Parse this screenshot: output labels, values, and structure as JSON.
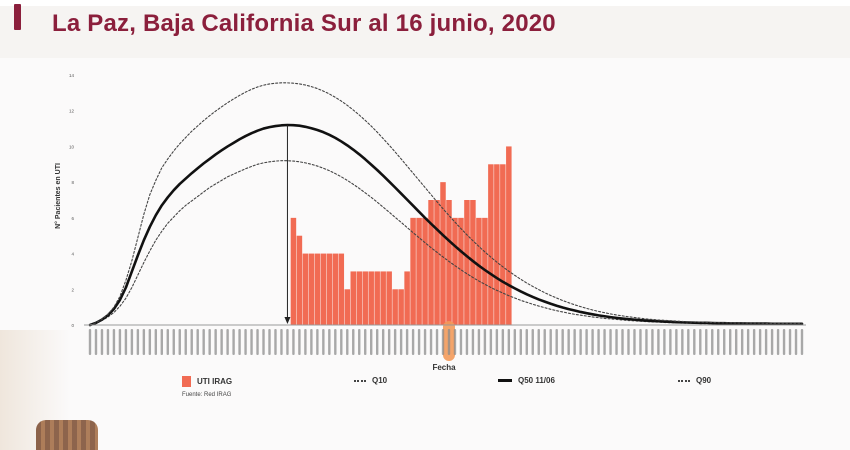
{
  "header": {
    "title": "La Paz, Baja California Sur al 16 junio, 2020",
    "accent_color": "#8b1f3c"
  },
  "chart_data": {
    "type": "bar",
    "title": "La Paz, Baja California Sur al 16 junio, 2020",
    "xlabel": "Fecha",
    "ylabel": "N° Pacientes en UTI",
    "ylim": [
      0,
      14
    ],
    "yticks": [
      0,
      2,
      4,
      6,
      8,
      10,
      12,
      14
    ],
    "grid": false,
    "x_points": 120,
    "peak_index": 33,
    "highlighted_index": 60,
    "bars": {
      "name": "UTI IRAG",
      "color": "#f16b53",
      "start_index": 34,
      "values": [
        6,
        5,
        4,
        4,
        4,
        4,
        4,
        4,
        4,
        2,
        3,
        3,
        3,
        3,
        3,
        3,
        3,
        2,
        2,
        3,
        6,
        6,
        6,
        7,
        7,
        8,
        7,
        6,
        6,
        7,
        7,
        6,
        6,
        9,
        9,
        9,
        10
      ]
    },
    "series": [
      {
        "name": "Q10",
        "style": "dotted",
        "values": [
          0,
          0.1,
          0.25,
          0.45,
          0.7,
          1.05,
          1.5,
          2.1,
          2.8,
          3.5,
          4.15,
          4.75,
          5.25,
          5.7,
          6.05,
          6.4,
          6.7,
          6.95,
          7.2,
          7.45,
          7.7,
          7.9,
          8.1,
          8.3,
          8.45,
          8.6,
          8.75,
          8.88,
          9,
          9.08,
          9.14,
          9.18,
          9.2,
          9.2,
          9.18,
          9.14,
          9.08,
          9,
          8.9,
          8.78,
          8.64,
          8.48,
          8.3,
          8.1,
          7.88,
          7.65,
          7.4,
          7.15,
          6.88,
          6.6,
          6.32,
          6.03,
          5.75,
          5.46,
          5.17,
          4.89,
          4.61,
          4.33,
          4.07,
          3.81,
          3.56,
          3.32,
          3.09,
          2.87,
          2.66,
          2.46,
          2.28,
          2.1,
          1.94,
          1.79,
          1.64,
          1.51,
          1.38,
          1.27,
          1.16,
          1.06,
          0.97,
          0.88,
          0.8,
          0.73,
          0.66,
          0.6,
          0.55,
          0.5,
          0.45,
          0.41,
          0.37,
          0.34,
          0.31,
          0.28,
          0.25,
          0.23,
          0.21,
          0.19,
          0.17,
          0.16,
          0.14,
          0.13,
          0.12,
          0.11,
          0.1,
          0.09,
          0.08,
          0.08,
          0.07,
          0.07,
          0.06,
          0.06,
          0.05,
          0.05,
          0.05,
          0.04,
          0.04,
          0.04,
          0.04,
          0.03,
          0.03,
          0.03,
          0.03,
          0.03
        ]
      },
      {
        "name": "Q50 11/06",
        "style": "solid",
        "values": [
          0,
          0.12,
          0.3,
          0.55,
          0.9,
          1.4,
          2.1,
          3,
          3.9,
          4.75,
          5.5,
          6.15,
          6.7,
          7.15,
          7.55,
          7.9,
          8.2,
          8.5,
          8.78,
          9.05,
          9.3,
          9.55,
          9.78,
          10,
          10.2,
          10.4,
          10.58,
          10.74,
          10.88,
          11,
          11.08,
          11.14,
          11.18,
          11.2,
          11.19,
          11.16,
          11.1,
          11.02,
          10.92,
          10.8,
          10.65,
          10.48,
          10.28,
          10.06,
          9.82,
          9.56,
          9.28,
          8.98,
          8.68,
          8.36,
          8.03,
          7.7,
          7.36,
          7.02,
          6.68,
          6.34,
          6,
          5.67,
          5.35,
          5.03,
          4.72,
          4.42,
          4.13,
          3.85,
          3.58,
          3.32,
          3.08,
          2.85,
          2.63,
          2.42,
          2.23,
          2.05,
          1.88,
          1.72,
          1.57,
          1.43,
          1.31,
          1.19,
          1.08,
          0.98,
          0.89,
          0.81,
          0.73,
          0.66,
          0.6,
          0.54,
          0.49,
          0.44,
          0.4,
          0.36,
          0.33,
          0.3,
          0.27,
          0.25,
          0.23,
          0.21,
          0.19,
          0.18,
          0.16,
          0.15,
          0.14,
          0.13,
          0.12,
          0.12,
          0.11,
          0.1,
          0.1,
          0.09,
          0.09,
          0.09,
          0.08,
          0.08,
          0.08,
          0.08,
          0.07,
          0.07,
          0.07,
          0.07,
          0.07,
          0.07
        ]
      },
      {
        "name": "Q90",
        "style": "dotted",
        "values": [
          0,
          0.12,
          0.32,
          0.6,
          1,
          1.6,
          2.5,
          3.6,
          4.9,
          6.2,
          7.3,
          8.1,
          8.8,
          9.3,
          9.75,
          10.15,
          10.5,
          10.85,
          11.15,
          11.45,
          11.72,
          11.98,
          12.22,
          12.45,
          12.66,
          12.86,
          13.04,
          13.2,
          13.33,
          13.43,
          13.5,
          13.54,
          13.56,
          13.56,
          13.54,
          13.5,
          13.44,
          13.35,
          13.24,
          13.1,
          12.94,
          12.75,
          12.54,
          12.3,
          12.04,
          11.76,
          11.46,
          11.14,
          10.8,
          10.44,
          10.07,
          9.69,
          9.3,
          8.9,
          8.5,
          8.1,
          7.7,
          7.3,
          6.9,
          6.51,
          6.13,
          5.76,
          5.4,
          5.05,
          4.72,
          4.4,
          4.09,
          3.8,
          3.52,
          3.26,
          3.01,
          2.78,
          2.56,
          2.35,
          2.16,
          1.98,
          1.81,
          1.65,
          1.51,
          1.37,
          1.25,
          1.13,
          1.03,
          0.93,
          0.84,
          0.76,
          0.69,
          0.62,
          0.56,
          0.51,
          0.46,
          0.42,
          0.38,
          0.34,
          0.31,
          0.28,
          0.26,
          0.24,
          0.22,
          0.2,
          0.18,
          0.17,
          0.16,
          0.15,
          0.14,
          0.13,
          0.12,
          0.12,
          0.11,
          0.11,
          0.1,
          0.1,
          0.1,
          0.09,
          0.09,
          0.09,
          0.09,
          0.09,
          0.09,
          0.09
        ]
      }
    ]
  },
  "legend": {
    "items": [
      {
        "label": "UTI IRAG",
        "symbol": "bar"
      },
      {
        "label": "Q10",
        "symbol": "dotted"
      },
      {
        "label": "Q50 11/06",
        "symbol": "solid"
      },
      {
        "label": "Q90",
        "symbol": "dotted"
      }
    ],
    "source": "Fuente: Red IRAG"
  }
}
